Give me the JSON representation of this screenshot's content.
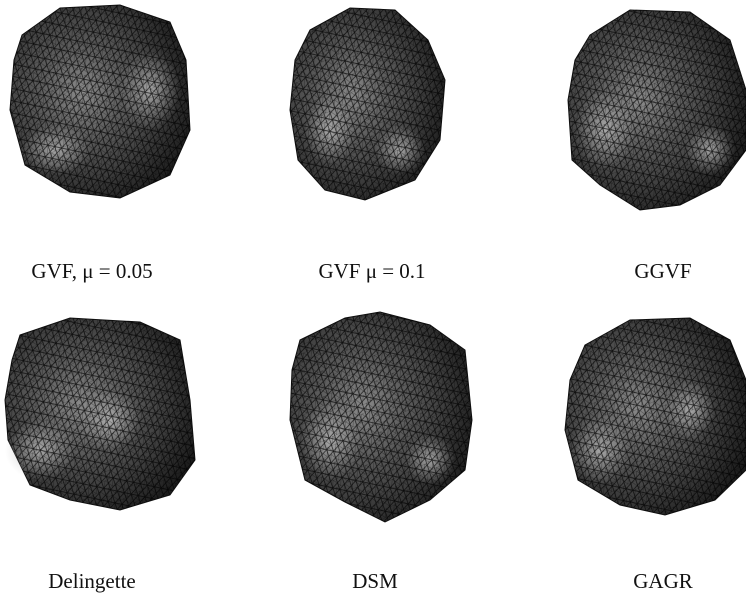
{
  "figure": {
    "panels": [
      {
        "caption": "GVF, μ = 0.05"
      },
      {
        "caption": "GVF μ = 0.1"
      },
      {
        "caption": "GGVF"
      },
      {
        "caption": "Delingette"
      },
      {
        "caption": "DSM"
      },
      {
        "caption": "GAGR"
      }
    ]
  }
}
